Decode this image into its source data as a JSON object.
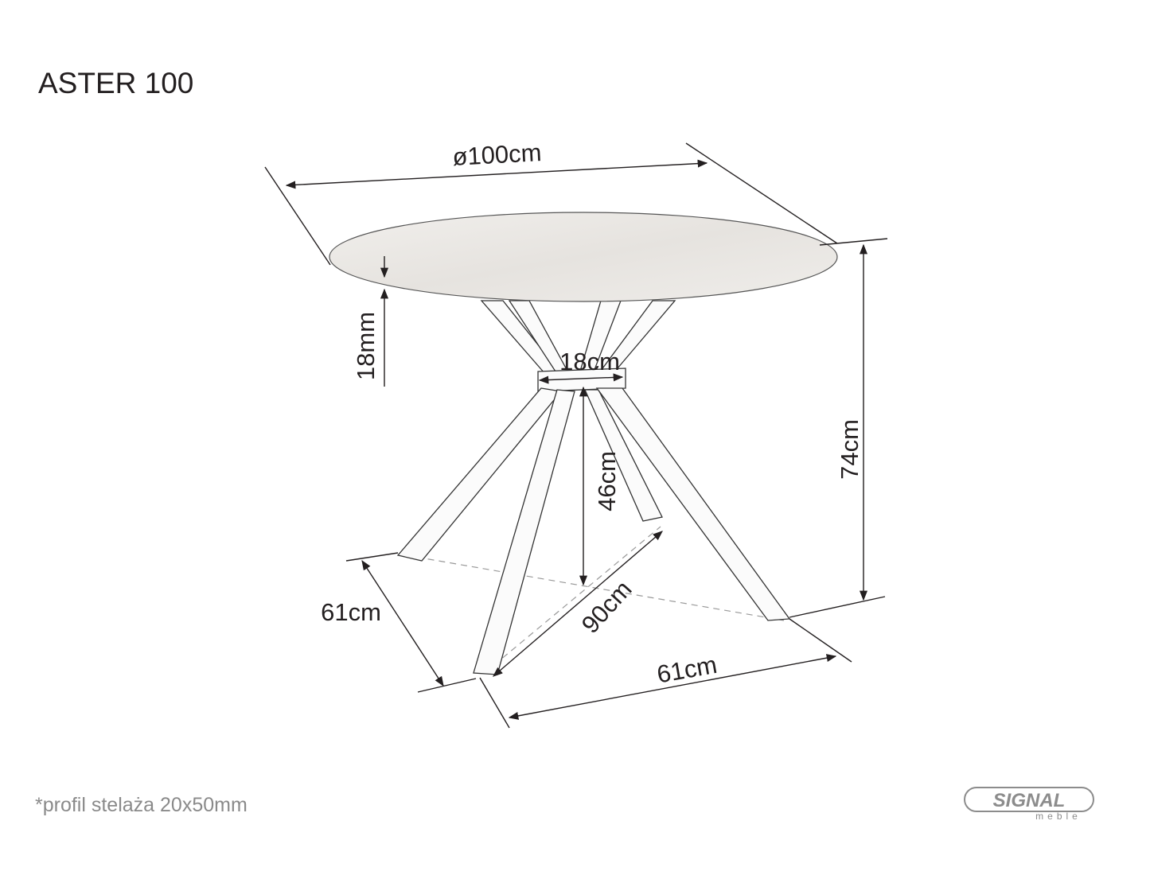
{
  "title": "ASTER 100",
  "footnote": "*profil stelaża 20x50mm",
  "dimensions": {
    "diameter": "ø100cm",
    "top_thickness": "18mm",
    "hub_width": "18cm",
    "total_height": "74cm",
    "hub_height": "46cm",
    "diagonal": "90cm",
    "depth": "61cm",
    "width": "61cm"
  },
  "logo": {
    "brand": "SIGNAL",
    "sub": "meble"
  },
  "colors": {
    "line": "#231f20",
    "note": "#8a8a8a",
    "logo": "#8c8c8c"
  }
}
